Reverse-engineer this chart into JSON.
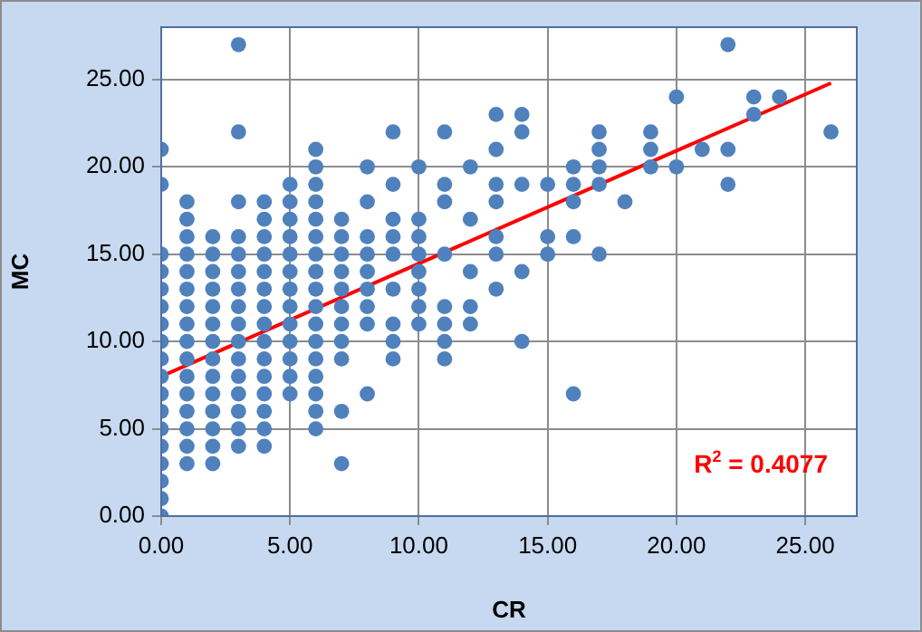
{
  "chart_data": {
    "type": "scatter",
    "xlabel": "CR",
    "ylabel": "MC",
    "xlim": [
      0,
      27
    ],
    "ylim": [
      0,
      28
    ],
    "xticks": [
      {
        "value": 0,
        "label": "0.00"
      },
      {
        "value": 5,
        "label": "5.00"
      },
      {
        "value": 10,
        "label": "10.00"
      },
      {
        "value": 15,
        "label": "15.00"
      },
      {
        "value": 20,
        "label": "20.00"
      },
      {
        "value": 25,
        "label": "25.00"
      }
    ],
    "yticks": [
      {
        "value": 0,
        "label": "0.00"
      },
      {
        "value": 5,
        "label": "5.00"
      },
      {
        "value": 10,
        "label": "10.00"
      },
      {
        "value": 15,
        "label": "15.00"
      },
      {
        "value": 20,
        "label": "20.00"
      },
      {
        "value": 25,
        "label": "25.00"
      }
    ],
    "grid": true,
    "legend": false,
    "marker": "circle",
    "annotations": [
      "R$^{2}$ = 0.4077"
    ],
    "series": [
      {
        "color": "#4f81bd",
        "x": [
          0,
          0,
          0,
          0,
          0,
          0,
          0,
          0,
          0,
          0,
          0,
          0,
          0,
          0,
          0,
          0,
          0,
          0,
          1,
          1,
          1,
          1,
          1,
          1,
          1,
          1,
          1,
          1,
          1,
          1,
          1,
          1,
          1,
          1,
          2,
          2,
          2,
          2,
          2,
          2,
          2,
          2,
          2,
          2,
          2,
          2,
          2,
          2,
          3,
          3,
          3,
          3,
          3,
          3,
          3,
          3,
          3,
          3,
          3,
          3,
          3,
          3,
          3,
          3,
          4,
          4,
          4,
          4,
          4,
          4,
          4,
          4,
          4,
          4,
          4,
          4,
          4,
          4,
          4,
          5,
          5,
          5,
          5,
          5,
          5,
          5,
          5,
          5,
          5,
          5,
          5,
          5,
          6,
          6,
          6,
          6,
          6,
          6,
          6,
          6,
          6,
          6,
          6,
          6,
          6,
          6,
          6,
          6,
          6,
          7,
          7,
          7,
          7,
          7,
          7,
          7,
          7,
          7,
          7,
          7,
          8,
          8,
          8,
          8,
          8,
          8,
          8,
          8,
          8,
          9,
          9,
          9,
          9,
          9,
          9,
          9,
          9,
          9,
          10,
          10,
          10,
          10,
          10,
          10,
          10,
          10,
          11,
          11,
          11,
          11,
          11,
          11,
          11,
          11,
          12,
          12,
          12,
          12,
          12,
          13,
          13,
          13,
          13,
          13,
          13,
          13,
          14,
          14,
          14,
          14,
          14,
          15,
          15,
          15,
          16,
          16,
          16,
          16,
          16,
          17,
          17,
          17,
          17,
          17,
          18,
          19,
          19,
          19,
          20,
          20,
          21,
          22,
          22,
          22,
          23,
          23,
          24,
          26
        ],
        "values": [
          0,
          1,
          2,
          3,
          4,
          5,
          6,
          7,
          8,
          9,
          10,
          11,
          12,
          13,
          14,
          15,
          19,
          21,
          3,
          4,
          5,
          6,
          7,
          8,
          9,
          10,
          11,
          12,
          13,
          14,
          15,
          16,
          17,
          18,
          3,
          4,
          5,
          6,
          7,
          8,
          9,
          10,
          11,
          12,
          13,
          14,
          15,
          16,
          4,
          5,
          6,
          7,
          8,
          9,
          10,
          11,
          12,
          13,
          14,
          15,
          16,
          18,
          22,
          27,
          4,
          5,
          6,
          7,
          8,
          9,
          10,
          11,
          12,
          13,
          14,
          15,
          16,
          17,
          18,
          7,
          8,
          9,
          10,
          11,
          12,
          13,
          14,
          15,
          16,
          17,
          18,
          19,
          5,
          6,
          7,
          8,
          9,
          10,
          11,
          12,
          13,
          14,
          15,
          16,
          17,
          18,
          19,
          20,
          21,
          3,
          6,
          9,
          10,
          11,
          12,
          13,
          14,
          15,
          16,
          17,
          7,
          11,
          12,
          13,
          14,
          15,
          16,
          18,
          20,
          9,
          10,
          11,
          13,
          15,
          16,
          17,
          19,
          22,
          11,
          12,
          13,
          14,
          15,
          16,
          17,
          20,
          9,
          10,
          11,
          12,
          15,
          18,
          19,
          22,
          11,
          12,
          14,
          17,
          20,
          13,
          15,
          16,
          18,
          19,
          21,
          23,
          10,
          14,
          19,
          22,
          23,
          15,
          16,
          19,
          7,
          16,
          18,
          19,
          20,
          15,
          19,
          20,
          21,
          22,
          18,
          20,
          21,
          22,
          20,
          24,
          21,
          19,
          21,
          27,
          23,
          24,
          24,
          22
        ]
      },
      {
        "type": "line",
        "marker": "none",
        "color": "#ff0000",
        "x": [
          0,
          26
        ],
        "values": [
          8.0,
          24.8
        ]
      }
    ]
  }
}
